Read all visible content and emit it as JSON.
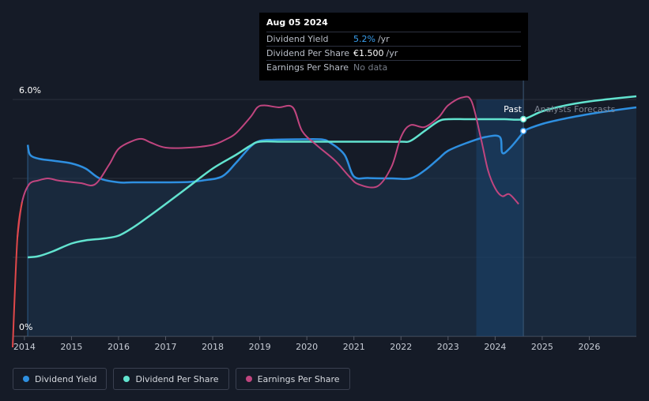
{
  "tooltip": {
    "date": "Aug 05 2024",
    "rows": [
      {
        "label": "Dividend Yield",
        "value": "5.2%",
        "unit": "/yr"
      },
      {
        "label": "Dividend Per Share",
        "value": "€1.500",
        "unit": "/yr"
      },
      {
        "label": "Earnings Per Share",
        "value": "No data"
      }
    ]
  },
  "period_labels": {
    "past": "Past",
    "forecast": "Analysts Forecasts"
  },
  "legend": [
    {
      "label": "Dividend Yield",
      "color": "#2e8fe0"
    },
    {
      "label": "Dividend Per Share",
      "color": "#62e3cf"
    },
    {
      "label": "Earnings Per Share",
      "color": "#c0457f"
    }
  ],
  "chart_data": {
    "type": "line",
    "xlim": [
      2013.75,
      2027.0
    ],
    "xticks": [
      "2014",
      "2015",
      "2016",
      "2017",
      "2018",
      "2019",
      "2020",
      "2021",
      "2022",
      "2023",
      "2024",
      "2025",
      "2026"
    ],
    "y_axis_labels": [
      "6.0%",
      "0%"
    ],
    "ylim": [
      0,
      6.0
    ],
    "grid": true,
    "past_boundary": 2024.6,
    "highlight_range": [
      2023.6,
      2024.6
    ],
    "series": [
      {
        "name": "Dividend Yield",
        "color": "#2e8fe0",
        "x": [
          2014.07,
          2014.12,
          2014.3,
          2014.6,
          2015.0,
          2015.3,
          2015.6,
          2016.0,
          2016.3,
          2017.0,
          2017.5,
          2017.8,
          2018.2,
          2018.5,
          2018.8,
          2019.0,
          2019.3,
          2019.8,
          2020.3,
          2020.5,
          2020.8,
          2021.0,
          2021.3,
          2021.8,
          2022.2,
          2022.5,
          2022.8,
          2023.0,
          2023.4,
          2023.8,
          2024.1,
          2024.15,
          2024.3,
          2024.55,
          2024.6,
          2025.0,
          2025.5,
          2026.0,
          2026.5,
          2027.0
        ],
        "y": [
          4.85,
          4.6,
          4.5,
          4.45,
          4.38,
          4.25,
          4.0,
          3.9,
          3.9,
          3.9,
          3.91,
          3.95,
          4.05,
          4.4,
          4.8,
          4.95,
          4.98,
          4.99,
          4.99,
          4.9,
          4.6,
          4.05,
          4.01,
          4.0,
          4.0,
          4.2,
          4.5,
          4.7,
          4.9,
          5.05,
          5.05,
          4.65,
          4.75,
          5.1,
          5.2,
          5.38,
          5.52,
          5.63,
          5.72,
          5.8
        ]
      },
      {
        "name": "Dividend Per Share",
        "color": "#62e3cf",
        "x": [
          2014.07,
          2014.3,
          2014.6,
          2015.0,
          2015.3,
          2015.7,
          2016.0,
          2016.3,
          2016.6,
          2017.0,
          2017.5,
          2018.0,
          2018.5,
          2018.8,
          2019.0,
          2019.5,
          2020.0,
          2020.5,
          2021.0,
          2021.5,
          2022.0,
          2022.2,
          2022.5,
          2022.8,
          2023.0,
          2023.4,
          2023.8,
          2024.2,
          2024.6,
          2025.0,
          2025.5,
          2026.0,
          2026.5,
          2027.0
        ],
        "y": [
          2.0,
          2.03,
          2.15,
          2.35,
          2.43,
          2.48,
          2.55,
          2.75,
          3.0,
          3.35,
          3.8,
          4.25,
          4.6,
          4.83,
          4.93,
          4.93,
          4.93,
          4.93,
          4.93,
          4.93,
          4.93,
          4.95,
          5.2,
          5.45,
          5.5,
          5.5,
          5.5,
          5.5,
          5.5,
          5.7,
          5.85,
          5.95,
          6.02,
          6.08
        ]
      },
      {
        "name": "Earnings Per Share",
        "color": "#c0457f",
        "x": [
          2013.75,
          2013.85,
          2013.95,
          2014.1,
          2014.3,
          2014.5,
          2014.7,
          2014.9,
          2015.2,
          2015.5,
          2015.8,
          2016.0,
          2016.3,
          2016.5,
          2016.7,
          2017.0,
          2017.5,
          2018.0,
          2018.3,
          2018.5,
          2018.8,
          2018.95,
          2019.1,
          2019.4,
          2019.7,
          2019.9,
          2020.2,
          2020.6,
          2020.9,
          2021.1,
          2021.5,
          2021.8,
          2022.0,
          2022.2,
          2022.5,
          2022.8,
          2023.0,
          2023.3,
          2023.5,
          2023.7,
          2023.85,
          2024.0,
          2024.15,
          2024.3,
          2024.5
        ],
        "y": [
          -2.0,
          2.5,
          3.4,
          3.85,
          3.95,
          4.0,
          3.95,
          3.92,
          3.88,
          3.85,
          4.35,
          4.75,
          4.95,
          5.0,
          4.9,
          4.78,
          4.78,
          4.85,
          5.0,
          5.15,
          5.55,
          5.8,
          5.85,
          5.8,
          5.8,
          5.2,
          4.85,
          4.45,
          4.05,
          3.85,
          3.8,
          4.3,
          5.05,
          5.35,
          5.3,
          5.55,
          5.85,
          6.05,
          5.95,
          5.0,
          4.2,
          3.75,
          3.55,
          3.6,
          3.35
        ]
      }
    ],
    "markers": [
      {
        "series": "Dividend Yield",
        "x": 2024.6,
        "y": 5.2
      },
      {
        "series": "Dividend Per Share",
        "x": 2024.6,
        "y": 5.5
      }
    ]
  }
}
